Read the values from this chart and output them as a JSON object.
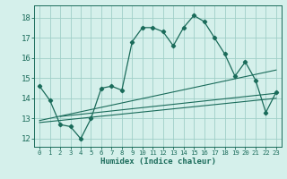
{
  "title": "",
  "xlabel": "Humidex (Indice chaleur)",
  "ylabel": "",
  "bg_color": "#d5f0eb",
  "grid_color": "#a0cfc8",
  "line_color": "#1a6b5a",
  "x_ticks": [
    0,
    1,
    2,
    3,
    4,
    5,
    6,
    7,
    8,
    9,
    10,
    11,
    12,
    13,
    14,
    15,
    16,
    17,
    18,
    19,
    20,
    21,
    22,
    23
  ],
  "y_ticks": [
    12,
    13,
    14,
    15,
    16,
    17,
    18
  ],
  "ylim": [
    11.6,
    18.6
  ],
  "xlim": [
    -0.5,
    23.5
  ],
  "series1": [
    14.6,
    13.9,
    12.7,
    12.6,
    12.0,
    13.0,
    14.5,
    14.6,
    14.4,
    16.8,
    17.5,
    17.5,
    17.3,
    16.6,
    17.5,
    18.1,
    17.8,
    17.0,
    16.2,
    15.1,
    15.8,
    14.9,
    13.3,
    14.3
  ],
  "line2": [
    [
      0,
      12.8
    ],
    [
      23,
      14.0
    ]
  ],
  "line3": [
    [
      0,
      12.9
    ],
    [
      23,
      15.4
    ]
  ],
  "line4": [
    [
      2,
      13.1
    ],
    [
      23,
      14.25
    ]
  ]
}
